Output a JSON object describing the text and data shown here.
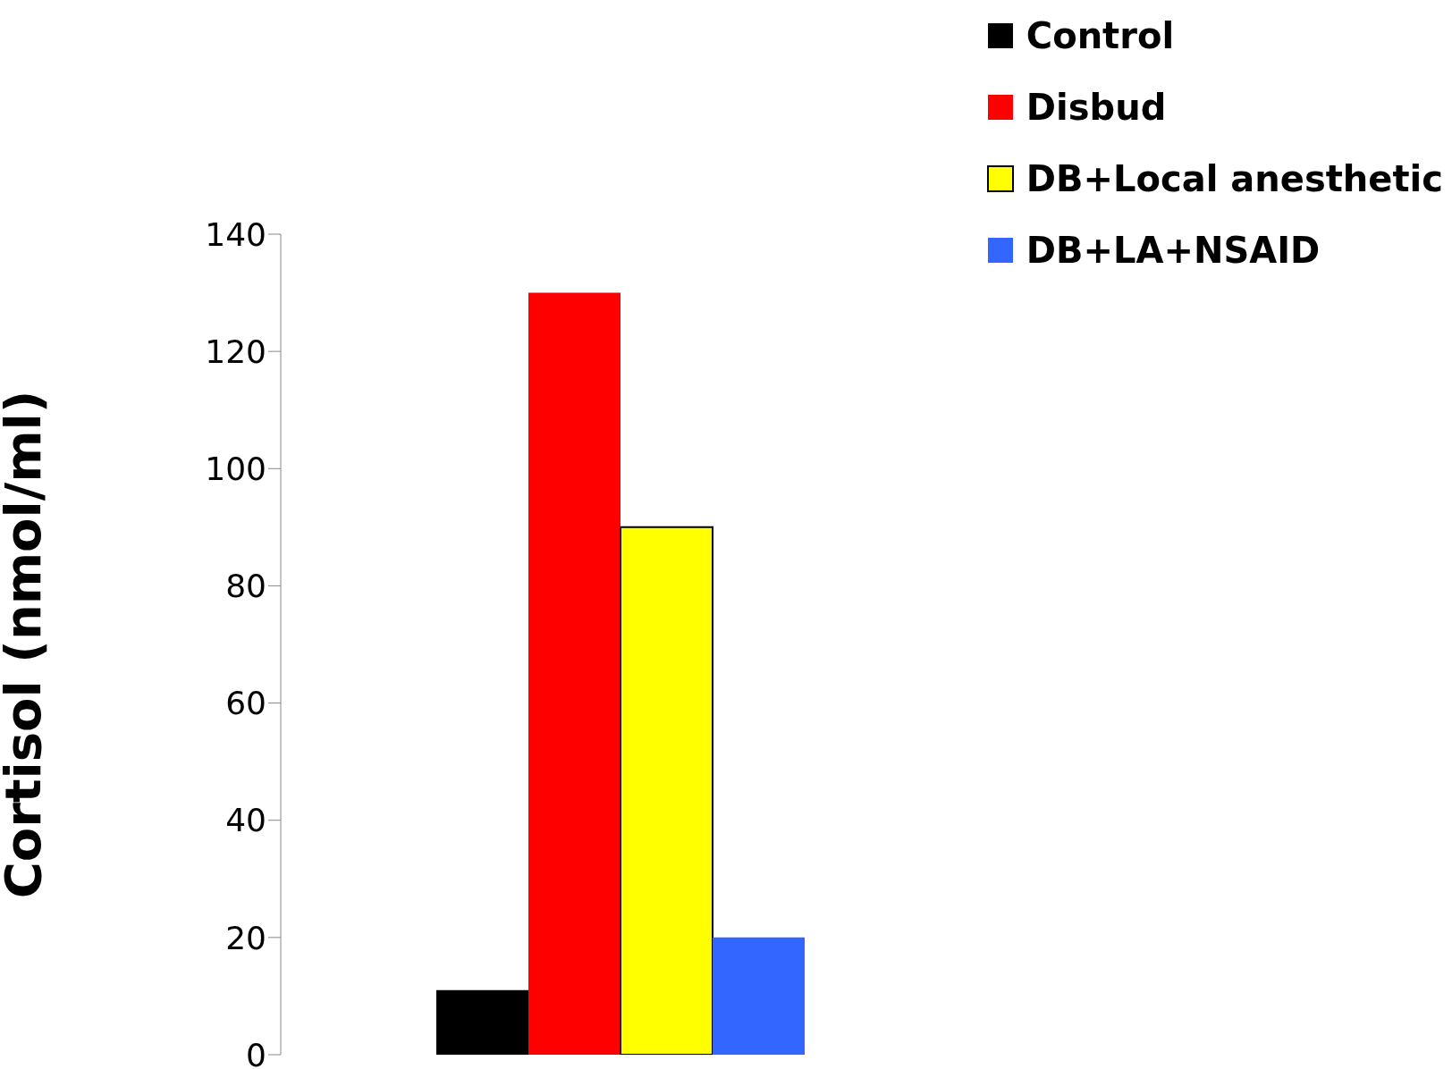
{
  "chart_data": {
    "type": "bar",
    "ylabel": "Cortisol (nmol/ml)",
    "categories": [
      null
    ],
    "series": [
      {
        "name": "Control",
        "color": "#000000",
        "values": [
          11
        ]
      },
      {
        "name": "Disbud",
        "color": "#ff0000",
        "values": [
          130
        ]
      },
      {
        "name": "DB+Local anesthetic",
        "color": "#ffff00",
        "values": [
          90
        ]
      },
      {
        "name": "DB+LA+NSAID",
        "color": "#3366ff",
        "values": [
          20
        ]
      }
    ],
    "ylim": [
      0,
      140
    ],
    "yticks": [
      0,
      20,
      40,
      60,
      80,
      100,
      120,
      140
    ],
    "grid": false,
    "legend": "top right"
  }
}
